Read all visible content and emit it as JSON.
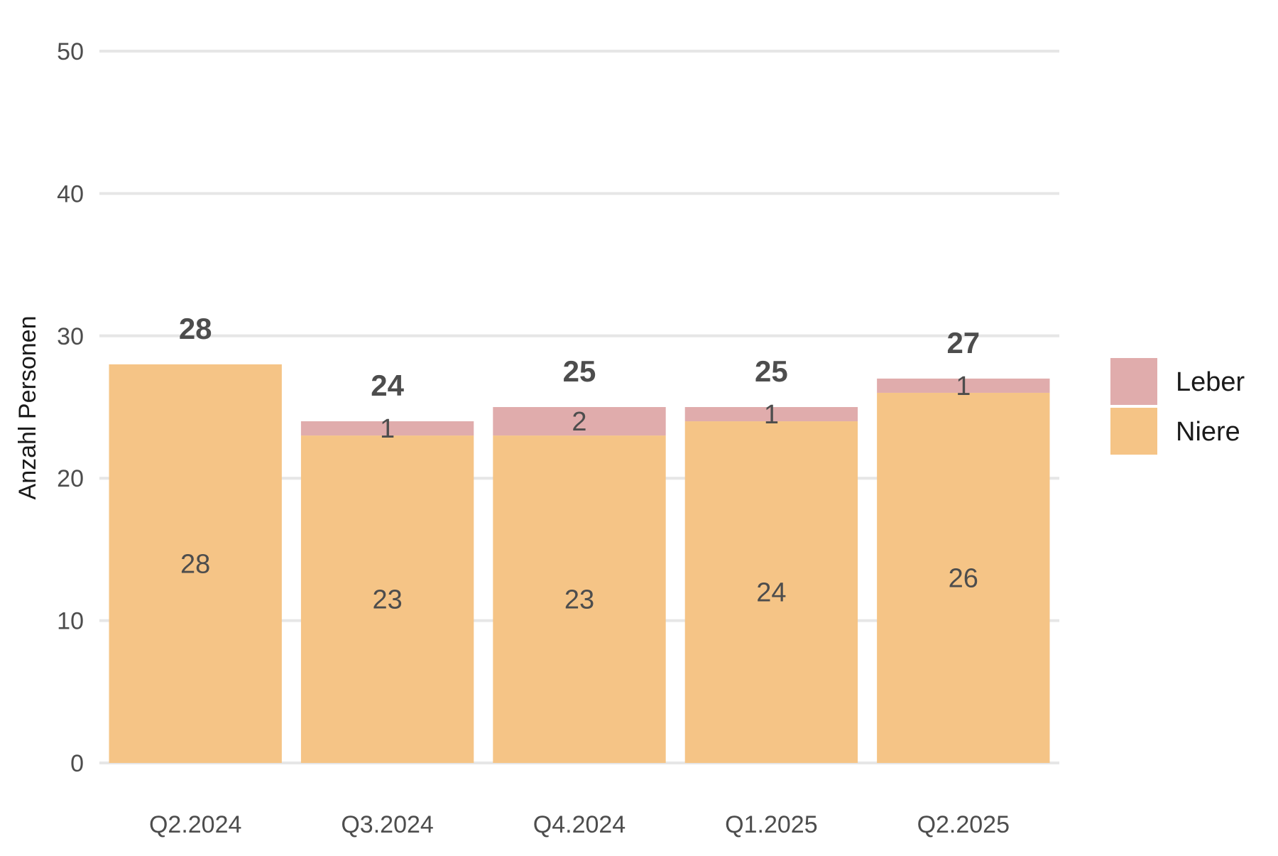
{
  "chart_data": {
    "type": "bar",
    "stacked": true,
    "categories": [
      "Q2.2024",
      "Q3.2024",
      "Q4.2024",
      "Q1.2025",
      "Q2.2025"
    ],
    "series": [
      {
        "name": "Niere",
        "values": [
          28,
          23,
          23,
          24,
          26
        ],
        "color": "#f5c486"
      },
      {
        "name": "Leber",
        "values": [
          0,
          1,
          2,
          1,
          1
        ],
        "color": "#e0acac"
      }
    ],
    "totals": [
      28,
      24,
      25,
      25,
      27
    ],
    "xlabel": "",
    "ylabel": "Anzahl Personen",
    "ylim": [
      0,
      50
    ],
    "yticks": [
      0,
      10,
      20,
      30,
      40,
      50
    ],
    "grid": "horizontal",
    "legend": {
      "position": "right",
      "order": [
        "Leber",
        "Niere"
      ]
    }
  }
}
